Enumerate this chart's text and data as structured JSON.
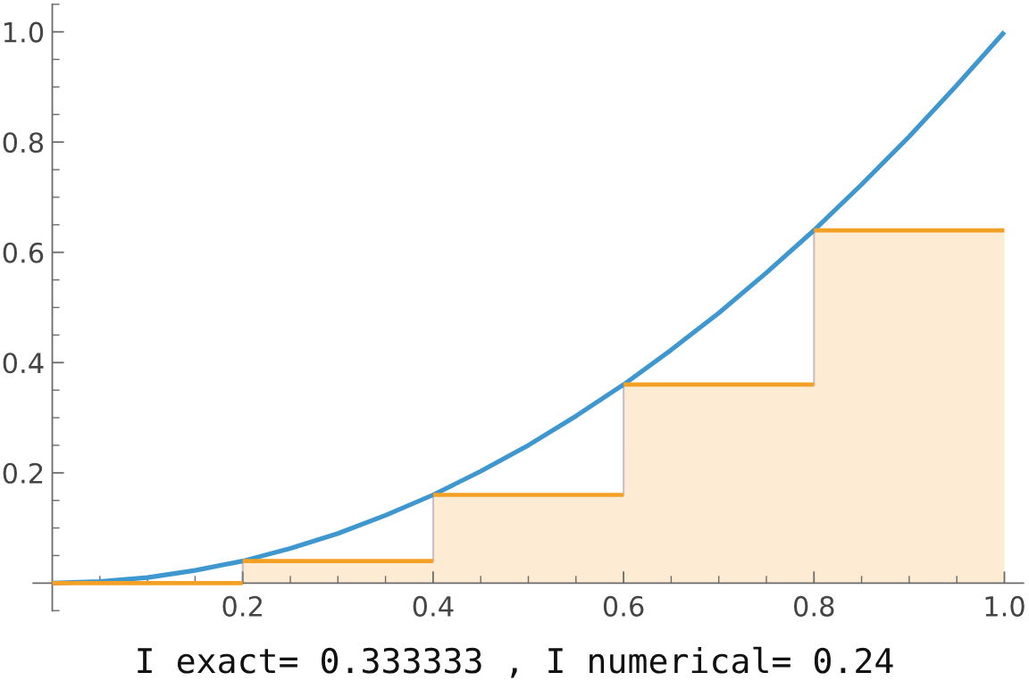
{
  "chart_data": {
    "type": "area",
    "xlim": [
      -0.02,
      1.02
    ],
    "ylim": [
      -0.05,
      1.05
    ],
    "xticks": [
      {
        "value": 0.05,
        "label": null
      },
      {
        "value": 0.1,
        "label": null
      },
      {
        "value": 0.15,
        "label": null
      },
      0.2,
      {
        "value": 0.25,
        "label": null
      },
      {
        "value": 0.3,
        "label": null
      },
      {
        "value": 0.35,
        "label": null
      },
      0.4,
      {
        "value": 0.45,
        "label": null
      },
      {
        "value": 0.5,
        "label": null
      },
      {
        "value": 0.55,
        "label": null
      },
      0.6,
      {
        "value": 0.65,
        "label": null
      },
      {
        "value": 0.7,
        "label": null
      },
      {
        "value": 0.75,
        "label": null
      },
      0.8,
      {
        "value": 0.85,
        "label": null
      },
      {
        "value": 0.9,
        "label": null
      },
      {
        "value": 0.95,
        "label": null
      },
      {
        "value": 1,
        "label": "1.0"
      }
    ],
    "yticks": [
      {
        "value": -0.05,
        "label": null
      },
      {
        "value": 0.05,
        "label": null
      },
      {
        "value": 0.1,
        "label": null
      },
      {
        "value": 0.15,
        "label": null
      },
      0.2,
      {
        "value": 0.25,
        "label": null
      },
      {
        "value": 0.3,
        "label": null
      },
      {
        "value": 0.35,
        "label": null
      },
      0.4,
      {
        "value": 0.45,
        "label": null
      },
      {
        "value": 0.5,
        "label": null
      },
      {
        "value": 0.55,
        "label": null
      },
      0.6,
      {
        "value": 0.65,
        "label": null
      },
      {
        "value": 0.7,
        "label": null
      },
      {
        "value": 0.75,
        "label": null
      },
      0.8,
      {
        "value": 0.85,
        "label": null
      },
      {
        "value": 0.9,
        "label": null
      },
      {
        "value": 0.95,
        "label": null
      },
      {
        "value": 1,
        "label": "1.0"
      },
      {
        "value": 1.05,
        "label": null
      }
    ],
    "annotations": [
      "I exact= 0.333333 , I numerical= 0.24"
    ],
    "series": [
      {
        "color": "#f4a024",
        "x": [
          0,
          0.2,
          0.2,
          0.4,
          0.4,
          0.6,
          0.6,
          0.8,
          0.8,
          1.0
        ],
        "values": [
          0,
          0,
          0.04,
          0.04,
          0.16,
          0.16,
          0.36,
          0.36,
          0.64,
          0.64
        ]
      },
      {
        "type": "line",
        "color": "#3e97cf",
        "x": [
          0,
          0.05,
          0.1,
          0.15,
          0.2,
          0.25,
          0.3,
          0.35,
          0.4,
          0.45,
          0.5,
          0.55,
          0.6,
          0.65,
          0.7,
          0.75,
          0.8,
          0.85,
          0.9,
          0.95,
          1.0
        ],
        "values": [
          0,
          0.003,
          0.01,
          0.023,
          0.04,
          0.063,
          0.09,
          0.123,
          0.16,
          0.203,
          0.25,
          0.303,
          0.36,
          0.423,
          0.49,
          0.563,
          0.64,
          0.723,
          0.81,
          0.903,
          1.0
        ]
      }
    ]
  }
}
